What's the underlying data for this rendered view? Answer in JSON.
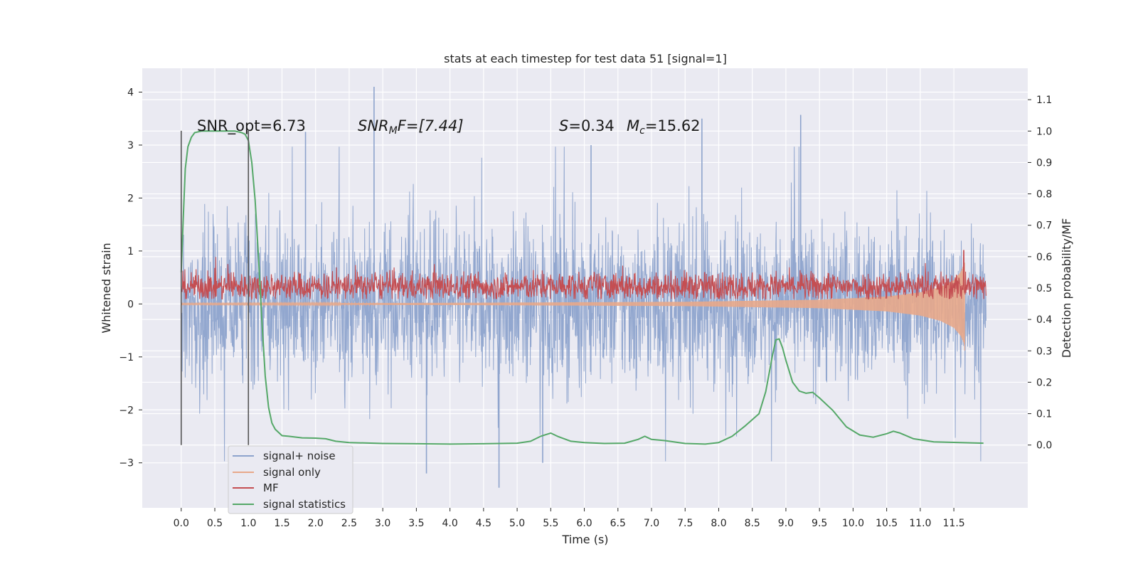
{
  "chart_data": {
    "type": "line",
    "title": "stats at each timestep for test data 51 [signal=1]",
    "xlabel": "Time (s)",
    "ylabel": "Whitened strain",
    "y2label": "Detection probability/MF",
    "xlim": [
      -0.58,
      12.6
    ],
    "ylim": [
      -3.85,
      4.45
    ],
    "y2lim": [
      -0.2,
      1.2
    ],
    "x_ticks": [
      0.0,
      0.5,
      1.0,
      1.5,
      2.0,
      2.5,
      3.0,
      3.5,
      4.0,
      4.5,
      5.0,
      5.5,
      6.0,
      6.5,
      7.0,
      7.5,
      8.0,
      8.5,
      9.0,
      9.5,
      10.0,
      10.5,
      11.0,
      11.5
    ],
    "x_tick_labels": [
      "0.0",
      "0.5",
      "1.0",
      "1.5",
      "2.0",
      "2.5",
      "3.0",
      "3.5",
      "4.0",
      "4.5",
      "5.0",
      "5.5",
      "6.0",
      "6.5",
      "7.0",
      "7.5",
      "8.0",
      "8.5",
      "9.0",
      "9.5",
      "10.0",
      "10.5",
      "11.0",
      "11.5"
    ],
    "y_ticks": [
      -3,
      -2,
      -1,
      0,
      1,
      2,
      3,
      4
    ],
    "y_tick_labels": [
      "−3",
      "−2",
      "−1",
      "0",
      "1",
      "2",
      "3",
      "4"
    ],
    "y2_ticks": [
      0.0,
      0.1,
      0.2,
      0.3,
      0.4,
      0.5,
      0.6,
      0.7,
      0.8,
      0.9,
      1.0,
      1.1
    ],
    "y2_tick_labels": [
      "0.0",
      "0.1",
      "0.2",
      "0.3",
      "0.4",
      "0.5",
      "0.6",
      "0.7",
      "0.8",
      "0.9",
      "1.0",
      "1.1"
    ],
    "grid": true,
    "legend_position": "lower-left",
    "annotations": {
      "snr_opt": "SNR_opt=6.73",
      "snr_mf_sym": "SNR",
      "snr_mf_sub": "M",
      "snr_mf_rest": "F=[7.44]",
      "s_sym": "S",
      "s_val": "=0.34",
      "mc_sym": "M",
      "mc_sub": "c",
      "mc_val": "=15.62"
    },
    "vertical_markers": [
      0.0,
      1.0
    ],
    "series": [
      {
        "name": "signal+ noise",
        "color": "#8da3cc",
        "axis": "left",
        "t_range": [
          0.0,
          11.98
        ],
        "typical_amplitude": 0.75,
        "envelope_max": 2.2,
        "notable_peaks": [
          [
            2.87,
            4.1
          ],
          [
            9.22,
            3.57
          ],
          [
            7.75,
            3.5
          ],
          [
            1.85,
            3.25
          ],
          [
            6.1,
            3.0
          ],
          [
            4.73,
            -3.47
          ],
          [
            3.65,
            -3.2
          ],
          [
            5.38,
            -3.0
          ]
        ]
      },
      {
        "name": "signal only",
        "color": "#e8a98a",
        "axis": "left",
        "t_range": [
          0.0,
          11.66
        ],
        "envelope": [
          [
            0.0,
            0.01
          ],
          [
            4.0,
            0.02
          ],
          [
            7.5,
            0.04
          ],
          [
            9.5,
            0.08
          ],
          [
            10.5,
            0.14
          ],
          [
            11.0,
            0.22
          ],
          [
            11.3,
            0.32
          ],
          [
            11.5,
            0.45
          ],
          [
            11.6,
            0.6
          ],
          [
            11.66,
            0.78
          ]
        ],
        "chirp_end_value": -0.88
      },
      {
        "name": "MF",
        "color": "#c44e52",
        "axis": "right",
        "t_range": [
          0.0,
          11.98
        ],
        "baseline": 0.505,
        "noise_band": [
          0.465,
          0.555
        ],
        "peak": [
          11.65,
          0.62
        ]
      },
      {
        "name": "signal statistics",
        "color": "#55a868",
        "axis": "right",
        "x": [
          0.0,
          0.03,
          0.06,
          0.1,
          0.15,
          0.2,
          0.3,
          0.5,
          0.8,
          0.9,
          0.95,
          1.0,
          1.05,
          1.1,
          1.15,
          1.2,
          1.25,
          1.3,
          1.35,
          1.4,
          1.5,
          1.6,
          1.8,
          2.0,
          2.15,
          2.3,
          2.5,
          3.0,
          3.5,
          4.0,
          4.5,
          5.0,
          5.2,
          5.35,
          5.5,
          5.6,
          5.8,
          6.0,
          6.3,
          6.6,
          6.8,
          6.9,
          7.0,
          7.2,
          7.5,
          7.8,
          8.0,
          8.2,
          8.4,
          8.6,
          8.7,
          8.8,
          8.85,
          8.9,
          8.95,
          9.0,
          9.1,
          9.2,
          9.3,
          9.4,
          9.5,
          9.7,
          9.9,
          10.1,
          10.3,
          10.5,
          10.6,
          10.7,
          10.9,
          11.2,
          11.6,
          11.94
        ],
        "y": [
          0.55,
          0.72,
          0.88,
          0.95,
          0.98,
          0.995,
          1.0,
          1.0,
          1.0,
          0.995,
          0.99,
          0.97,
          0.9,
          0.78,
          0.6,
          0.4,
          0.22,
          0.12,
          0.07,
          0.05,
          0.03,
          0.028,
          0.023,
          0.022,
          0.02,
          0.012,
          0.008,
          0.005,
          0.004,
          0.003,
          0.004,
          0.006,
          0.012,
          0.028,
          0.038,
          0.028,
          0.012,
          0.008,
          0.005,
          0.006,
          0.018,
          0.028,
          0.018,
          0.014,
          0.005,
          0.003,
          0.008,
          0.028,
          0.062,
          0.1,
          0.17,
          0.285,
          0.335,
          0.338,
          0.31,
          0.27,
          0.2,
          0.172,
          0.165,
          0.168,
          0.15,
          0.11,
          0.058,
          0.032,
          0.025,
          0.036,
          0.044,
          0.038,
          0.02,
          0.01,
          0.008,
          0.006
        ]
      }
    ]
  }
}
